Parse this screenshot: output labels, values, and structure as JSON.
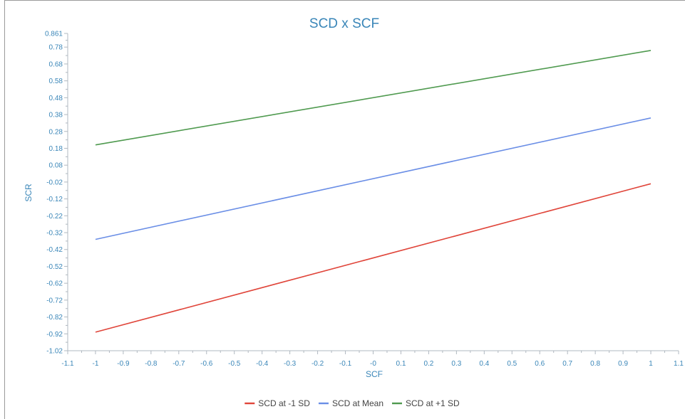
{
  "chart_data": {
    "type": "line",
    "title": "SCD x SCF",
    "xlabel": "SCF",
    "ylabel": "SCR",
    "xlim": [
      -1.1,
      1.1
    ],
    "ylim": [
      -1.02,
      0.861
    ],
    "x_ticks": [
      "-1.1",
      "-1",
      "-0.9",
      "-0.8",
      "-0.7",
      "-0.6",
      "-0.5",
      "-0.4",
      "-0.3",
      "-0.2",
      "-0.1",
      "-0",
      "0.1",
      "0.2",
      "0.3",
      "0.4",
      "0.5",
      "0.6",
      "0.7",
      "0.8",
      "0.9",
      "1",
      "1.1"
    ],
    "y_ticks": [
      "0.861",
      "0.78",
      "0.68",
      "0.58",
      "0.48",
      "0.38",
      "0.28",
      "0.18",
      "0.08",
      "-0.02",
      "-0.12",
      "-0.22",
      "-0.32",
      "-0.42",
      "-0.52",
      "-0.62",
      "-0.72",
      "-0.82",
      "-0.92",
      "-1.02"
    ],
    "x": [
      -1,
      1
    ],
    "series": [
      {
        "name": "SCD at -1 SD",
        "color": "#e0453a",
        "values": [
          -0.91,
          -0.03
        ]
      },
      {
        "name": "SCD at Mean",
        "color": "#6a8ee6",
        "values": [
          -0.36,
          0.36
        ]
      },
      {
        "name": "SCD at +1 SD",
        "color": "#4f9a4f",
        "values": [
          0.2,
          0.76
        ]
      }
    ],
    "legend_position": "bottom-center",
    "grid": false
  }
}
